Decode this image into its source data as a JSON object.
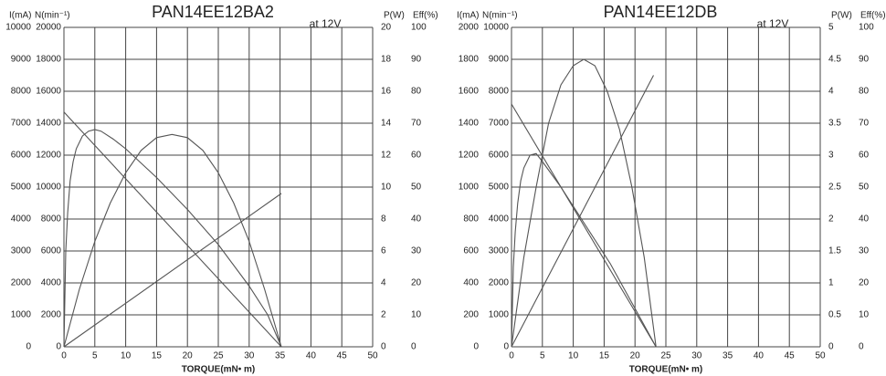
{
  "chart_data": [
    {
      "type": "line",
      "title": "PAN14EE12BA2",
      "annotation": "at 12V",
      "x_label": "TORQUE(mN• m)",
      "ylabel": "I(mA)",
      "y2label": "N(min⁻¹)",
      "y3label": "P(W)",
      "y4label": "Eff(%)",
      "xlim": [
        0,
        50
      ],
      "xticks": [
        0,
        5,
        10,
        15,
        20,
        25,
        30,
        35,
        40,
        45,
        50
      ],
      "ylim": [
        0,
        10000
      ],
      "yticks": [
        0,
        1000,
        2000,
        3000,
        4000,
        5000,
        6000,
        7000,
        8000,
        9000,
        10000
      ],
      "y2lim": [
        0,
        20000
      ],
      "y2ticks": [
        0,
        2000,
        4000,
        6000,
        8000,
        10000,
        12000,
        14000,
        16000,
        18000,
        20000
      ],
      "y3lim": [
        0,
        20
      ],
      "y3ticks": [
        0,
        2,
        4,
        6,
        8,
        10,
        12,
        14,
        16,
        18,
        20
      ],
      "y4lim": [
        0,
        100
      ],
      "y4ticks": [
        0,
        10,
        20,
        30,
        40,
        50,
        60,
        70,
        80,
        90,
        100
      ],
      "grid": true,
      "series": [
        {
          "axis": "y2",
          "color": "#555555",
          "x": [
            0,
            35.2
          ],
          "values": [
            14700,
            0
          ]
        },
        {
          "axis": "y",
          "color": "#555555",
          "x": [
            0,
            35.2
          ],
          "values": [
            0,
            4800
          ]
        },
        {
          "axis": "y3",
          "color": "#555555",
          "x": [
            0,
            2.5,
            5,
            7.5,
            10,
            12.5,
            15,
            17.5,
            20,
            22.5,
            25,
            27.5,
            30,
            32.5,
            35.2
          ],
          "values": [
            0,
            3.6,
            6.6,
            9.0,
            10.9,
            12.3,
            13.1,
            13.3,
            13.1,
            12.3,
            10.9,
            9.0,
            6.6,
            3.6,
            0
          ]
        },
        {
          "axis": "y4",
          "color": "#555555",
          "x": [
            0,
            0.3,
            0.6,
            1,
            1.5,
            2,
            3,
            4,
            5,
            6,
            8,
            10,
            15,
            20,
            25,
            30,
            33,
            35.2
          ],
          "values": [
            0,
            30,
            42,
            52,
            58,
            62,
            66,
            67.5,
            68,
            67.5,
            65,
            62,
            53,
            43,
            32,
            19,
            10,
            0
          ]
        }
      ]
    },
    {
      "type": "line",
      "title": "PAN14EE12DB",
      "annotation": "at 12V",
      "x_label": "TORQUE(mN• m)",
      "ylabel": "I(mA)",
      "y2label": "N(min⁻¹)",
      "y3label": "P(W)",
      "y4label": "Eff(%)",
      "xlim": [
        0,
        50
      ],
      "xticks": [
        0,
        5,
        10,
        15,
        20,
        25,
        30,
        35,
        40,
        45,
        50
      ],
      "ylim": [
        0,
        2000
      ],
      "yticks": [
        0,
        200,
        400,
        600,
        800,
        1000,
        1200,
        1400,
        1600,
        1800,
        2000
      ],
      "y2lim": [
        0,
        10000
      ],
      "y2ticks": [
        0,
        1000,
        2000,
        3000,
        4000,
        5000,
        6000,
        7000,
        8000,
        9000,
        10000
      ],
      "y3lim": [
        0,
        5
      ],
      "y3ticks": [
        0,
        0.5,
        1,
        1.5,
        2,
        2.5,
        3,
        3.5,
        4,
        4.5,
        5
      ],
      "y4lim": [
        0,
        100
      ],
      "y4ticks": [
        0,
        10,
        20,
        30,
        40,
        50,
        60,
        70,
        80,
        90,
        100
      ],
      "grid": true,
      "series": [
        {
          "axis": "y2",
          "color": "#555555",
          "x": [
            0,
            23.4
          ],
          "values": [
            7600,
            0
          ]
        },
        {
          "axis": "y",
          "color": "#555555",
          "x": [
            0,
            23.0
          ],
          "values": [
            0,
            1700
          ]
        },
        {
          "axis": "y3",
          "color": "#555555",
          "x": [
            0,
            2,
            4,
            6,
            8,
            10,
            11.7,
            13.5,
            15.5,
            17.5,
            19.5,
            21.5,
            23.4
          ],
          "values": [
            0,
            1.4,
            2.5,
            3.5,
            4.1,
            4.4,
            4.5,
            4.4,
            4.0,
            3.4,
            2.5,
            1.4,
            0
          ]
        },
        {
          "axis": "y4",
          "color": "#555555",
          "x": [
            0,
            0.3,
            0.6,
            1,
            1.5,
            2,
            3,
            4,
            5,
            8,
            12,
            16,
            20,
            23.4
          ],
          "values": [
            0,
            25,
            36,
            45,
            52,
            56,
            60,
            60.5,
            58,
            50,
            38,
            26,
            12,
            0
          ]
        }
      ]
    }
  ]
}
